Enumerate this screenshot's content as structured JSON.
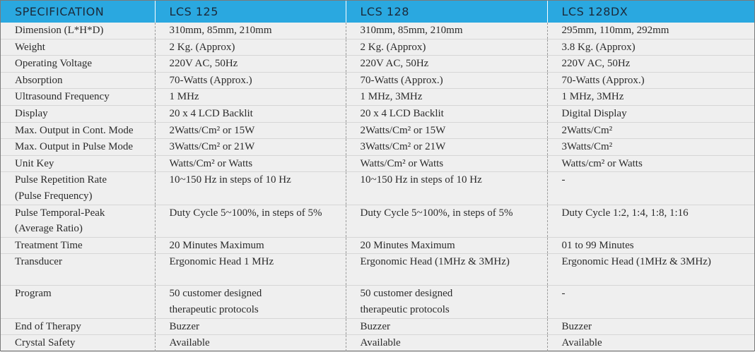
{
  "table": {
    "headers": [
      "SPECIFICATION",
      "LCS 125",
      "LCS 128",
      "LCS 128DX"
    ],
    "rows": [
      {
        "spec": "Dimension (L*H*D)",
        "v": [
          "310mm, 85mm, 210mm",
          "310mm, 85mm, 210mm",
          "295mm, 110mm, 292mm"
        ]
      },
      {
        "spec": "Weight",
        "v": [
          "2 Kg. (Approx)",
          "2 Kg. (Approx)",
          "3.8 Kg. (Approx)"
        ]
      },
      {
        "spec": "Operating Voltage",
        "v": [
          "220V AC, 50Hz",
          "220V AC, 50Hz",
          "220V AC, 50Hz"
        ]
      },
      {
        "spec": "Absorption",
        "v": [
          "70-Watts (Approx.)",
          "70-Watts (Approx.)",
          "70-Watts (Approx.)"
        ]
      },
      {
        "spec": "Ultrasound Frequency",
        "v": [
          "1 MHz",
          "1 MHz, 3MHz",
          "1 MHz, 3MHz"
        ]
      },
      {
        "spec": "Display",
        "v": [
          "20 x 4 LCD Backlit",
          "20 x 4 LCD Backlit",
          "Digital Display"
        ]
      },
      {
        "spec": "Max. Output in Cont. Mode",
        "v": [
          "2Watts/Cm² or 15W",
          "2Watts/Cm² or 15W",
          "2Watts/Cm²"
        ]
      },
      {
        "spec": "Max. Output in Pulse Mode",
        "v": [
          "3Watts/Cm² or 21W",
          "3Watts/Cm² or 21W",
          "3Watts/Cm²"
        ]
      },
      {
        "spec": "Unit Key",
        "v": [
          "Watts/Cm² or Watts",
          "Watts/Cm² or Watts",
          "Watts/cm² or Watts"
        ]
      },
      {
        "spec": "Pulse Repetition Rate\n(Pulse Frequency)",
        "v": [
          "10~150 Hz in steps of 10 Hz",
          "10~150 Hz in steps of 10 Hz",
          "-"
        ]
      },
      {
        "spec": "Pulse Temporal-Peak\n(Average Ratio)",
        "v": [
          "Duty Cycle 5~100%, in steps of 5%",
          "Duty Cycle 5~100%, in steps of 5%",
          "Duty Cycle 1:2, 1:4, 1:8, 1:16"
        ]
      },
      {
        "spec": "Treatment Time",
        "v": [
          "20 Minutes Maximum",
          "20 Minutes Maximum",
          "01 to 99 Minutes"
        ]
      },
      {
        "spec": "Transducer",
        "v": [
          "Ergonomic Head 1 MHz",
          "Ergonomic Head (1MHz & 3MHz)",
          "Ergonomic Head (1MHz & 3MHz)"
        ]
      },
      {
        "spec": "Program",
        "v": [
          "50 customer designed\ntherapeutic protocols",
          "50 customer designed\ntherapeutic protocols",
          "-"
        ]
      },
      {
        "spec": "End of Therapy",
        "v": [
          "Buzzer",
          "Buzzer",
          "Buzzer"
        ]
      },
      {
        "spec": "Crystal Safety",
        "v": [
          "Available",
          "Available",
          "Available"
        ]
      }
    ]
  }
}
